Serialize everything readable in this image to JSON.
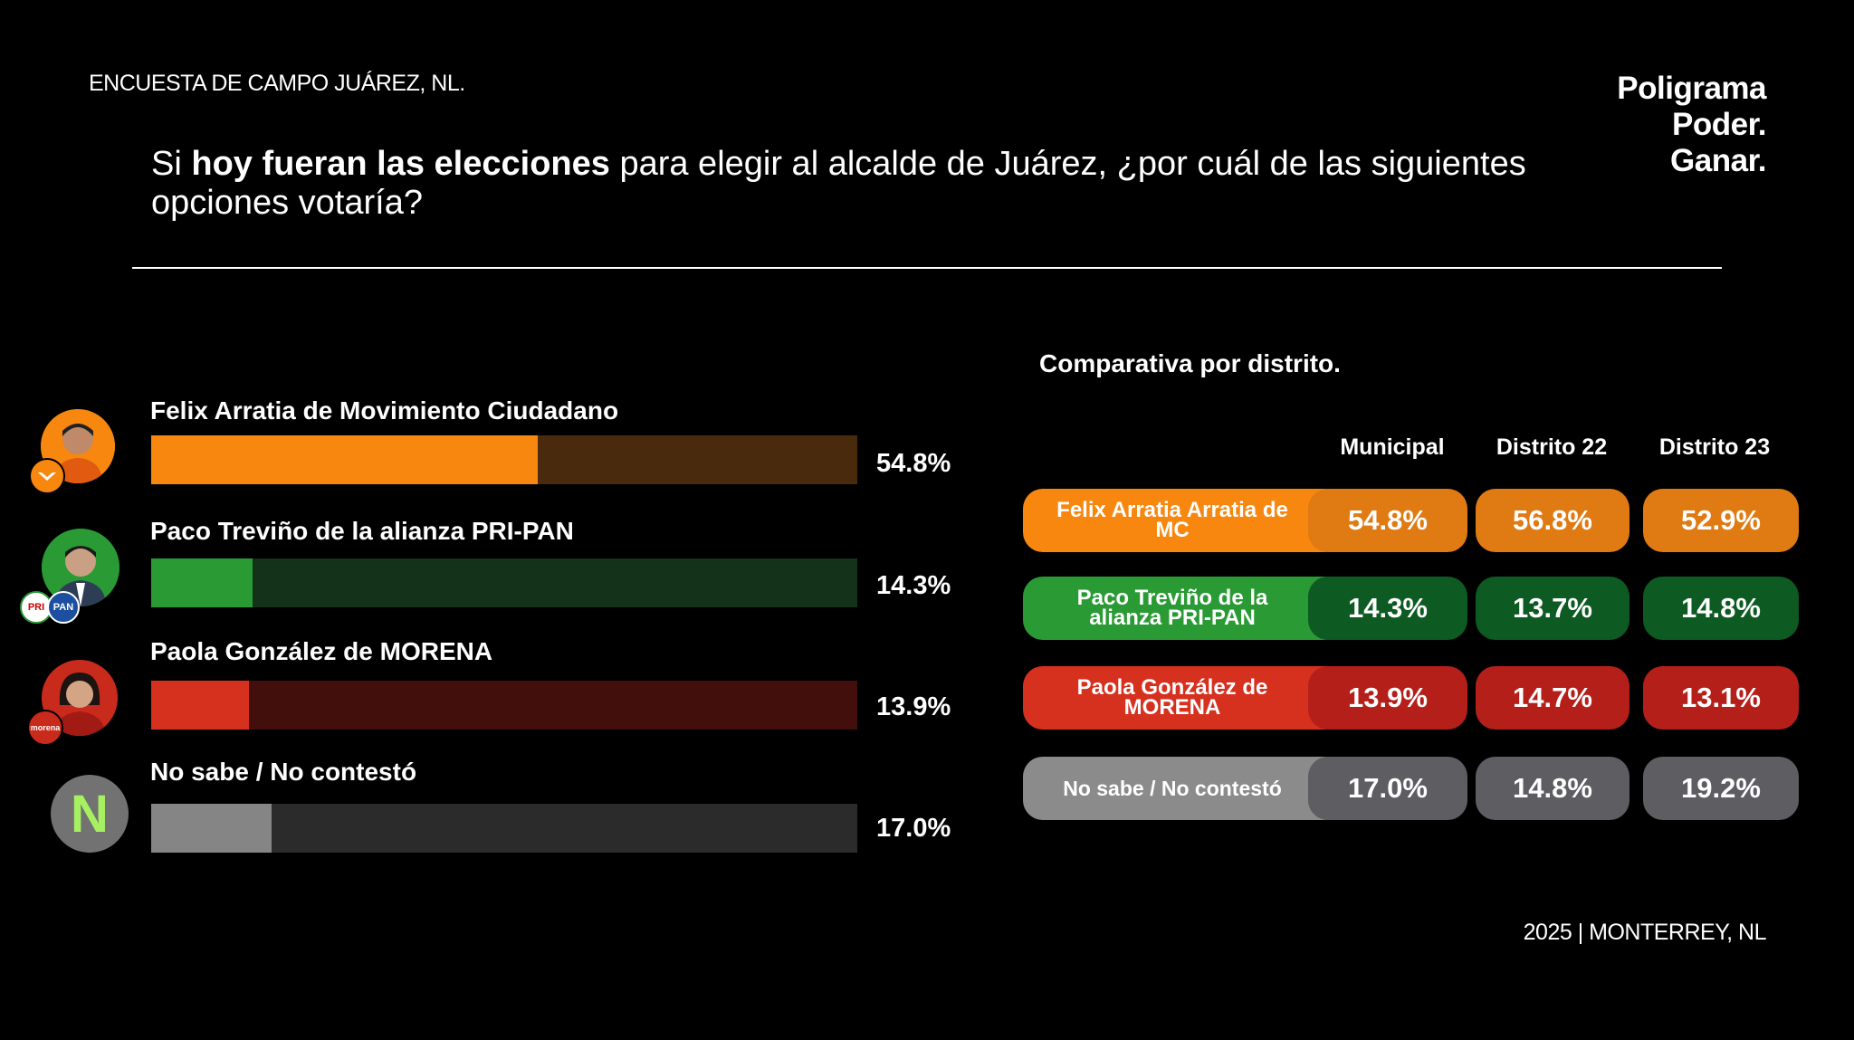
{
  "header": {
    "survey_label": "ENCUESTA DE CAMPO JUÁREZ, NL."
  },
  "brand": {
    "line1": "Poligrama",
    "line2": "Poder.",
    "line3": "Ganar."
  },
  "question": {
    "pre": "Si ",
    "bold": "hoy fueran las elecciones",
    "post": " para elegir al alcalde de Juárez, ¿por cuál de las siguientes opciones votaría?"
  },
  "chart_data": [
    {
      "type": "bar",
      "orientation": "horizontal",
      "categories": [
        "Felix Arratia  de Movimiento Ciudadano",
        "Paco Treviño de la alianza PRI-PAN",
        "Paola González de MORENA",
        "No sabe / No contestó"
      ],
      "values": [
        54.8,
        14.3,
        13.9,
        17.0
      ],
      "value_labels": [
        "54.8%",
        "14.3%",
        "13.9%",
        "17.0%"
      ],
      "xlim": [
        0,
        100
      ],
      "colors": [
        "#f7870f",
        "#2a9a35",
        "#d6301f",
        "#858585"
      ],
      "track_colors": [
        "#4a2a0c",
        "#14311a",
        "#420f0c",
        "#2b2b2b"
      ]
    },
    {
      "type": "table",
      "title": "Comparativa por distrito.",
      "columns": [
        "Municipal",
        "Distrito 22",
        "Distrito 23"
      ],
      "rows": [
        {
          "label": "Felix Arratia Arratia de MC",
          "values": [
            "54.8%",
            "56.8%",
            "52.9%"
          ],
          "color": "#f7870f",
          "cell_color": "#e07a12"
        },
        {
          "label": "Paco Treviño de la alianza PRI-PAN",
          "values": [
            "14.3%",
            "13.7%",
            "14.8%"
          ],
          "color": "#2a9a35",
          "cell_color": "#0d5a22"
        },
        {
          "label": "Paola González de MORENA",
          "values": [
            "13.9%",
            "14.7%",
            "13.1%"
          ],
          "color": "#d6301f",
          "cell_color": "#b51f1a"
        },
        {
          "label": "No sabe / No contestó",
          "values": [
            "17.0%",
            "14.8%",
            "19.2%"
          ],
          "color": "#8b8b8b",
          "cell_color": "#5d5d62"
        }
      ]
    }
  ],
  "icons": {
    "candidate1_badge": "movimiento-ciudadano-logo",
    "candidate2_badges": "pri-pan-logos",
    "candidate3_badge": "morena-logo",
    "none_icon_letter": "N"
  },
  "footer": {
    "text": "2025 | MONTERREY, NL"
  }
}
